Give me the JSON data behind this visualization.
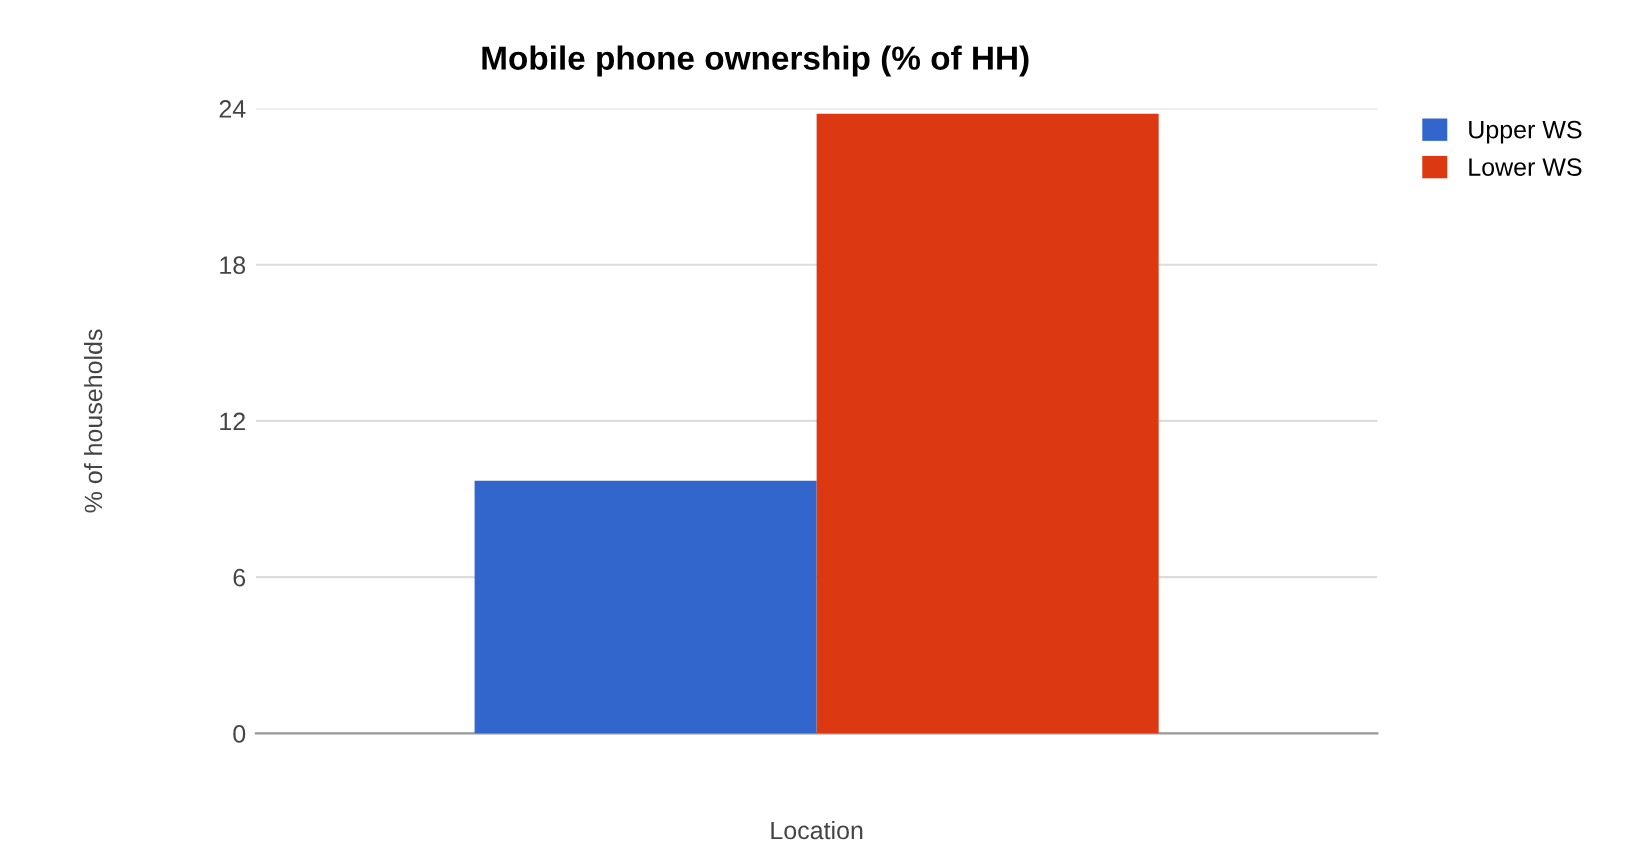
{
  "chart_data": {
    "type": "bar",
    "title": "Mobile phone ownership (% of HH)",
    "xlabel": "Location",
    "ylabel": "% of households",
    "categories": [
      null
    ],
    "series": [
      {
        "name": "Upper WS",
        "color": "#3366cc",
        "values": [
          9.7
        ]
      },
      {
        "name": "Lower WS",
        "color": "#dc3912",
        "values": [
          23.8
        ]
      }
    ],
    "ylim": [
      0,
      24
    ],
    "yticks": [
      0,
      6,
      12,
      18,
      24
    ],
    "grid": "y",
    "legend": "top right"
  }
}
